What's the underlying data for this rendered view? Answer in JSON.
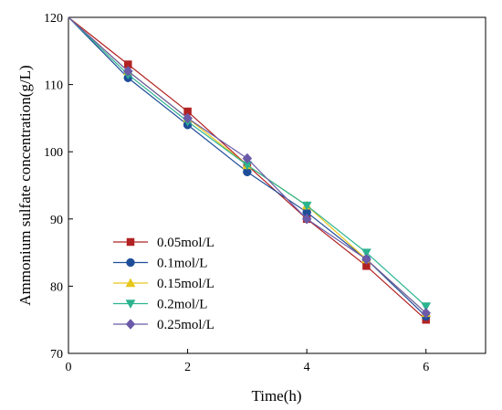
{
  "chart_data": {
    "type": "line",
    "title": "",
    "xlabel": "Time(h)",
    "ylabel": "Ammonium sulfate concentration(g/L)",
    "xlim": [
      0,
      7
    ],
    "ylim": [
      70,
      120
    ],
    "x_ticks": [
      "0",
      "2",
      "4",
      "6"
    ],
    "y_ticks": [
      "70",
      "80",
      "90",
      "100",
      "110",
      "120"
    ],
    "grid": false,
    "legend_position": "bottom-left",
    "x": [
      0,
      1,
      2,
      3,
      4,
      5,
      6
    ],
    "series": [
      {
        "name": "0.05mol/L",
        "color": "#b22222",
        "marker": "square",
        "values": [
          120,
          113,
          106,
          98,
          90,
          83,
          75
        ]
      },
      {
        "name": "0.1mol/L",
        "color": "#1f4e99",
        "marker": "circle",
        "values": [
          120,
          111,
          104,
          97,
          91,
          84,
          75.5
        ]
      },
      {
        "name": "0.15mol/L",
        "color": "#e6c619",
        "marker": "triangle-up",
        "values": [
          120,
          112,
          105,
          98,
          92,
          84,
          76
        ]
      },
      {
        "name": "0.2mol/L",
        "color": "#2bb38f",
        "marker": "triangle-down",
        "values": [
          120,
          111.5,
          104.5,
          98,
          92,
          85,
          77
        ]
      },
      {
        "name": "0.25mol/L",
        "color": "#6a5aa8",
        "marker": "diamond",
        "values": [
          120,
          112,
          105,
          99,
          90,
          84,
          76
        ]
      }
    ]
  }
}
